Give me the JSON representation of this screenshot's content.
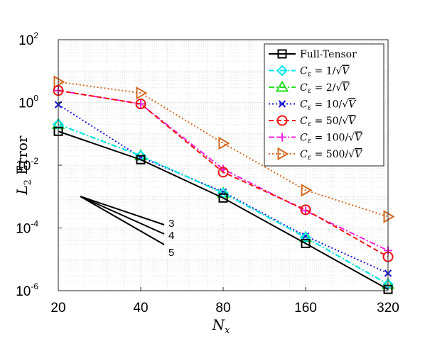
{
  "chart_data": {
    "type": "line",
    "xscale": "log2",
    "yscale": "log10",
    "x": [
      20,
      40,
      80,
      160,
      320
    ],
    "xticks": [
      "20",
      "40",
      "80",
      "160",
      "320"
    ],
    "yticks": [
      {
        "base": "10",
        "exp": "-6",
        "value": 1e-06
      },
      {
        "base": "10",
        "exp": "-4",
        "value": 0.0001
      },
      {
        "base": "10",
        "exp": "-2",
        "value": 0.01
      },
      {
        "base": "10",
        "exp": "0",
        "value": 1
      },
      {
        "base": "10",
        "exp": "2",
        "value": 100
      }
    ],
    "xlim": [
      20,
      320
    ],
    "ylim": [
      1e-06,
      100
    ],
    "xlabel": "Nx",
    "ylabel": "L2 Error",
    "grid": true,
    "legend_position": "top-right",
    "series": [
      {
        "name": "Full-Tensor",
        "color": "#000000",
        "dash": "solid",
        "marker": "square",
        "values": [
          0.12,
          0.015,
          0.0009,
          3.2e-05,
          1.1e-06
        ]
      },
      {
        "name": "Cε = 1/√V",
        "color": "#00e5ee",
        "dash": "dashdot",
        "marker": "diamond",
        "values": [
          0.2,
          0.02,
          0.0013,
          5e-05,
          1.6e-06
        ]
      },
      {
        "name": "Cε = 2/√V",
        "color": "#22dd22",
        "dash": "dashdot",
        "marker": "triangle-up",
        "values": [
          0.2,
          0.02,
          0.0013,
          5e-05,
          1.6e-06
        ]
      },
      {
        "name": "Cε = 10/√V",
        "color": "#1a1ad8",
        "dash": "dotted",
        "marker": "x",
        "values": [
          0.85,
          0.018,
          0.0014,
          5.5e-05,
          3.6e-06
        ]
      },
      {
        "name": "Cε = 50/√V",
        "color": "#ee1111",
        "dash": "dashed",
        "marker": "circle",
        "values": [
          2.4,
          0.9,
          0.006,
          0.00038,
          1.2e-05
        ]
      },
      {
        "name": "Cε = 100/√V",
        "color": "#ee22dd",
        "dash": "dashdot",
        "marker": "plus",
        "values": [
          2.4,
          0.9,
          0.0075,
          0.00035,
          1.9e-05
        ]
      },
      {
        "name": "Cε = 500/√V",
        "color": "#d2691e",
        "dash": "dotted",
        "marker": "triangle-right",
        "values": [
          4.5,
          2.0,
          0.05,
          0.0016,
          0.00023
        ]
      }
    ],
    "slope_annotations": [
      "3",
      "4",
      "5"
    ]
  }
}
